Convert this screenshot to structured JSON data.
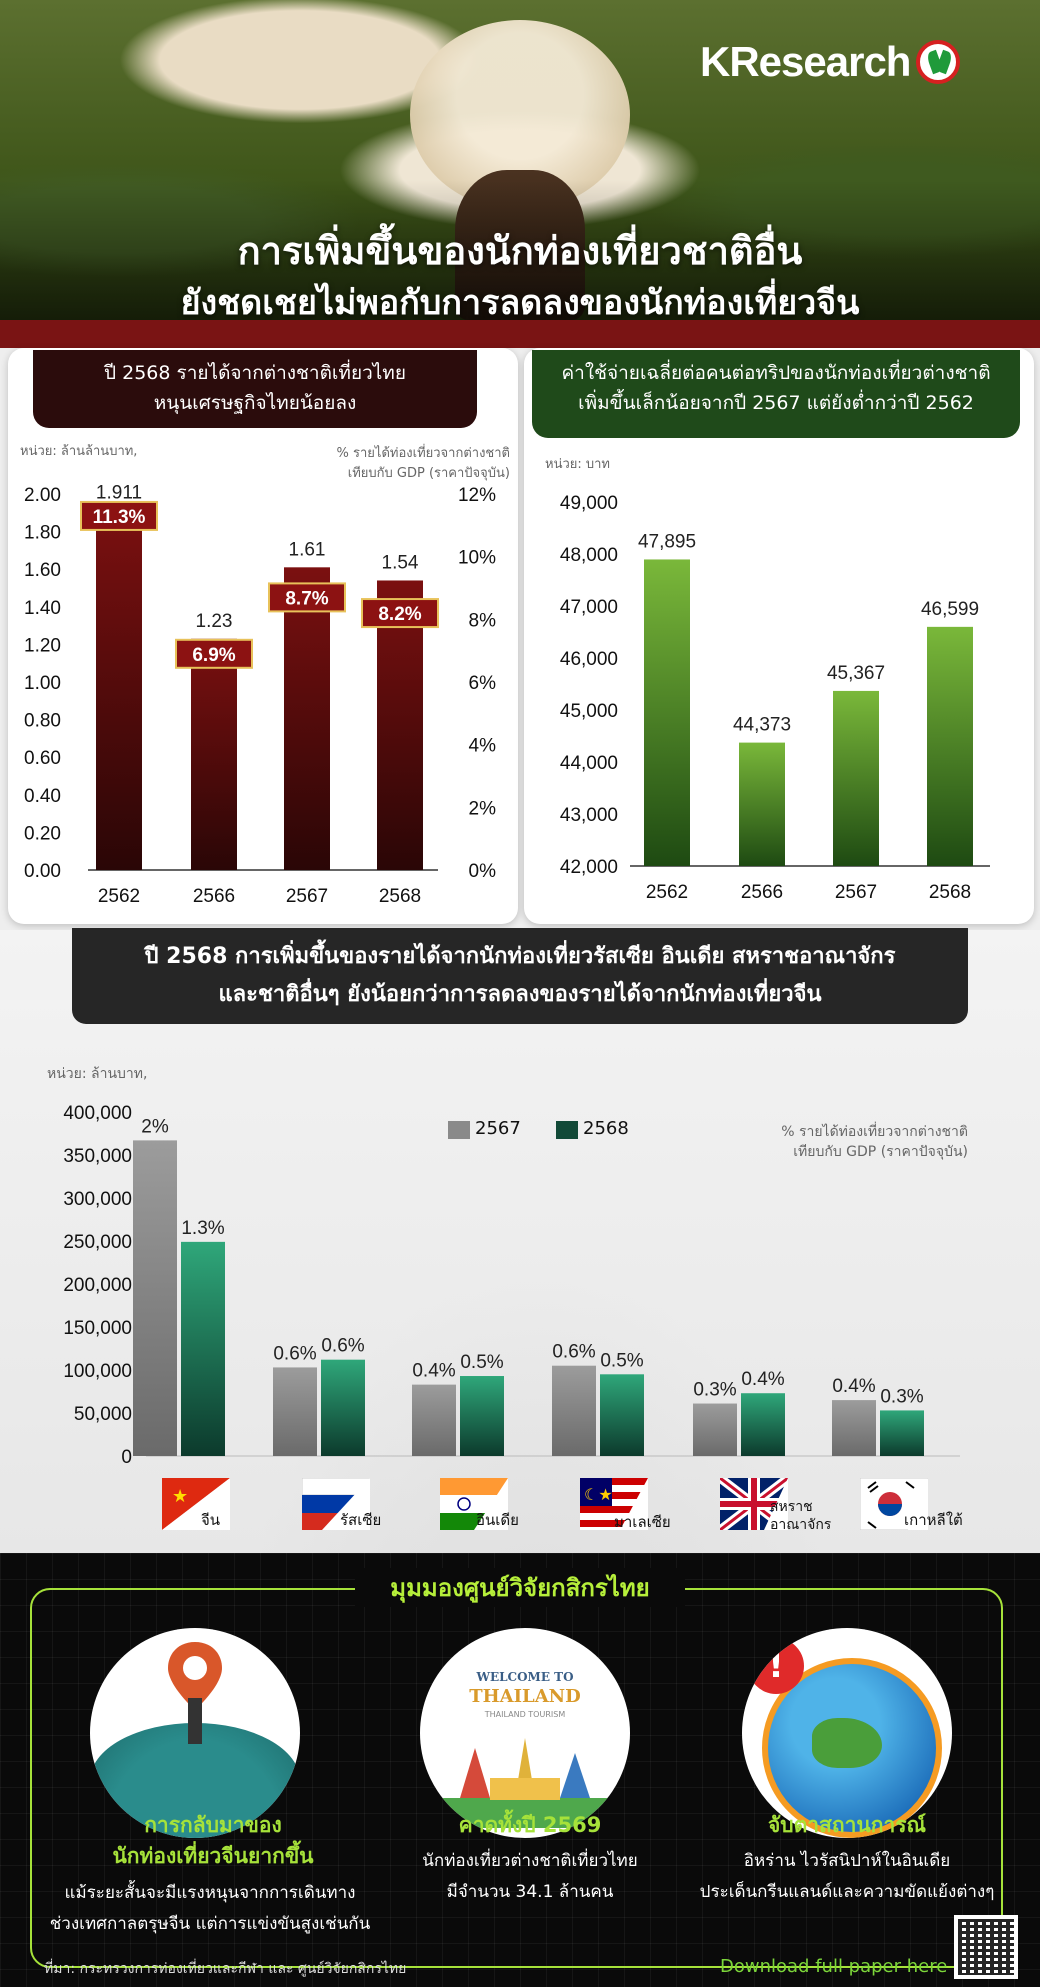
{
  "brand": "KResearch",
  "hero": {
    "title_line1": "การเพิ่มขึ้นของนักท่องเที่ยวชาติอื่น",
    "title_line2": "ยังชดเชยไม่พอกับการลดลงของนักท่องเที่ยวจีน"
  },
  "left_panel": {
    "title_line1": "ปี 2568 รายได้จากต่างชาติเที่ยวไทย",
    "title_line2": "หนุนเศรษฐกิจไทยน้อยลง",
    "unit_left": "หน่วย: ล้านล้านบาท,",
    "unit_right_line1": "% รายได้ท่องเที่ยวจากต่างชาติ",
    "unit_right_line2": "เทียบกับ GDP (ราคาปัจจุบัน)"
  },
  "right_panel": {
    "title_line1": "ค่าใช้จ่ายเฉลี่ยต่อคนต่อทริปของนักท่องเที่ยวต่างชาติ",
    "title_line2": "เพิ่มขึ้นเล็กน้อยจากปี 2567 แต่ยังต่ำกว่าปี 2562",
    "unit": "หน่วย: บาท"
  },
  "middle": {
    "title_line1": "ปี 2568 การเพิ่มขึ้นของรายได้จากนักท่องเที่ยวรัสเซีย อินเดีย สหราชอาณาจักร",
    "title_line2": "และชาติอื่นๆ ยังน้อยกว่าการลดลงของรายได้จากนักท่องเที่ยวจีน",
    "unit": "หน่วย: ล้านบาท,",
    "note_line1": "% รายได้ท่องเที่ยวจากต่างชาติ",
    "note_line2": "เทียบกับ GDP (ราคาปัจจุบัน)",
    "legend": [
      "2567",
      "2568"
    ]
  },
  "chart_data": [
    {
      "type": "bar",
      "categories": [
        "2562",
        "2566",
        "2567",
        "2568"
      ],
      "values": [
        1.911,
        1.23,
        1.61,
        1.54
      ],
      "value_labels": [
        "1.911",
        "1.23",
        "1.61",
        "1.54"
      ],
      "pct_of_gdp": [
        "11.3%",
        "6.9%",
        "8.7%",
        "8.2%"
      ],
      "ylim": [
        0,
        2.0
      ],
      "yticks": [
        "0.00",
        "0.20",
        "0.40",
        "0.60",
        "0.80",
        "1.00",
        "1.20",
        "1.40",
        "1.60",
        "1.80",
        "2.00"
      ],
      "y2ticks": [
        "0%",
        "2%",
        "4%",
        "6%",
        "8%",
        "10%",
        "12%"
      ],
      "color": "#6e0f0f"
    },
    {
      "type": "bar",
      "categories": [
        "2562",
        "2566",
        "2567",
        "2568"
      ],
      "values": [
        47895,
        44373,
        45367,
        46599
      ],
      "value_labels": [
        "47,895",
        "44,373",
        "45,367",
        "46,599"
      ],
      "ylim": [
        42000,
        49000
      ],
      "yticks": [
        "42,000",
        "43,000",
        "44,000",
        "45,000",
        "46,000",
        "47,000",
        "48,000",
        "49,000"
      ],
      "color": "#5c9e2a"
    },
    {
      "type": "bar",
      "categories": [
        "จีน",
        "รัสเซีย",
        "อินเดีย",
        "มาเลเซีย",
        "สหราชอาณาจักร",
        "เกาหลีใต้"
      ],
      "category_lines": [
        [
          "จีน"
        ],
        [
          "รัสเซีย"
        ],
        [
          "อินเดีย"
        ],
        [
          "มาเลเซีย"
        ],
        [
          "สหราช",
          "อาณาจักร"
        ],
        [
          "เกาหลีใต้"
        ]
      ],
      "series": [
        {
          "name": "2567",
          "values": [
            367000,
            103000,
            83000,
            105000,
            61000,
            65000
          ],
          "pct_labels": [
            "2%",
            "0.6%",
            "0.4%",
            "0.6%",
            "0.3%",
            "0.4%"
          ],
          "color": "#8a8a8a"
        },
        {
          "name": "2568",
          "values": [
            249000,
            112000,
            93000,
            95000,
            73000,
            53000
          ],
          "pct_labels": [
            "1.3%",
            "0.6%",
            "0.5%",
            "0.5%",
            "0.4%",
            "0.3%"
          ],
          "color": "#1d7a5a"
        }
      ],
      "ylim": [
        0,
        400000
      ],
      "yticks": [
        "0",
        "50,000",
        "100,000",
        "150,000",
        "200,000",
        "250,000",
        "300,000",
        "350,000",
        "400,000"
      ]
    }
  ],
  "bottom": {
    "title": "มุมมองศูนย์วิจัยกสิกรไทย",
    "col1": {
      "title_line1": "การกลับมาของ",
      "title_line2": "นักท่องเที่ยวจีนยากขึ้น",
      "text_line1": "แม้ระยะสั้นจะมีแรงหนุนจากการเดินทาง",
      "text_line2": "ช่วงเทศกาลตรุษจีน แต่การแข่งขันสูงเช่นกัน"
    },
    "col2": {
      "sign_line1": "WELCOME TO",
      "sign_line2": "THAILAND",
      "sign_line3": "THAILAND TOURISM",
      "title": "คาดทั้งปี 2569",
      "text_line1": "นักท่องเที่ยวต่างชาติเที่ยวไทย",
      "text_line2": "มีจำนวน 34.1 ล้านคน"
    },
    "col3": {
      "title": "จับตาสถานการณ์",
      "text_line1": "อิหร่าน ไวรัสนิปาห์ในอินเดีย",
      "text_line2": "ประเด็นกรีนแลนด์และความขัดแย้งต่างๆ"
    },
    "source": "ที่มา: กระทรวงการท่องเที่ยวและกีฬา และ ศูนย์วิจัยกสิกรไทย",
    "download": "Download full paper here"
  }
}
